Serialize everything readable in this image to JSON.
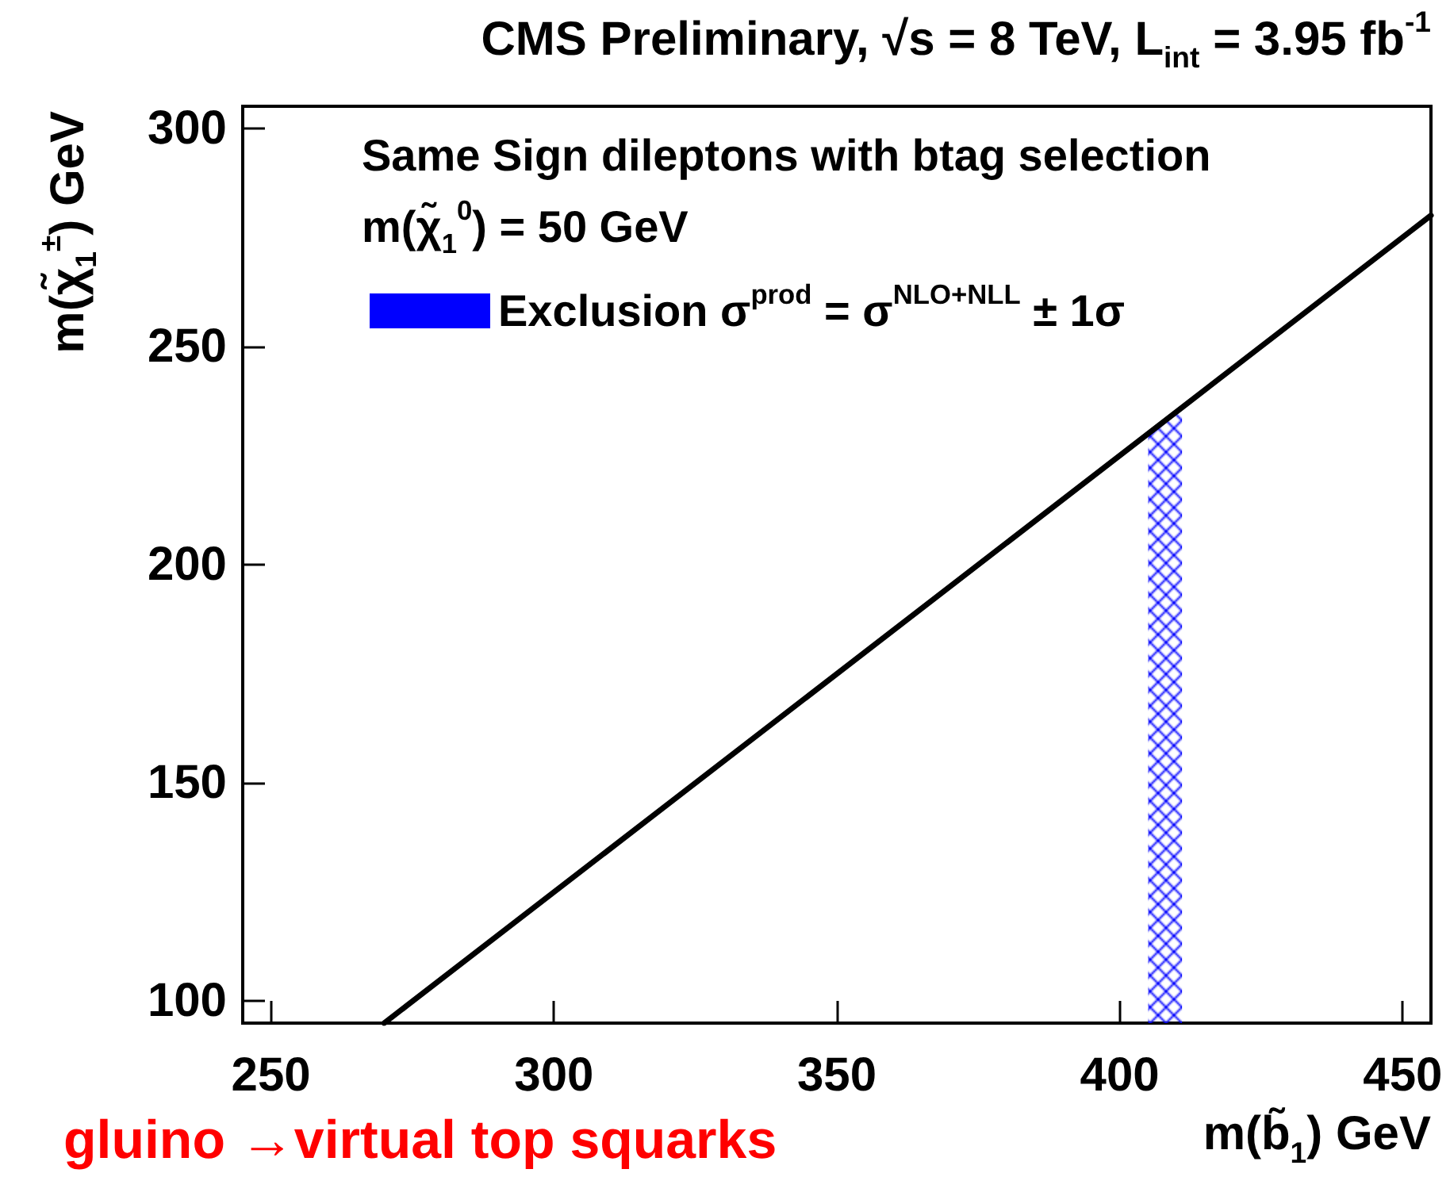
{
  "chart_data": {
    "type": "line",
    "title": "CMS Preliminary, √s = 8 TeV, L$_{int}$ = 3.95 fb$^{-1}$",
    "xlabel": "m(b̃$_{1}$) GeV",
    "ylabel": "m(χ̃$_{1}$$^{±}$) GeV",
    "legend_title": "Same Sign dileptons with btag selection",
    "annotations": [
      "m(χ̃$_{1}$$^{0}$) = 50 GeV",
      "gluino →virtual top squarks"
    ],
    "series": [
      {
        "color": "#000000",
        "x": [
          270,
          455
        ],
        "values": [
          95,
          280
        ]
      },
      {
        "type": "area",
        "name": "Exclusion σ$^{prod}$ = σ$^{NLO+NLL}$ ± 1σ",
        "color": "#0000ff",
        "x": [
          405,
          411
        ],
        "values": [
          230,
          236
        ]
      }
    ],
    "xlim": [
      245,
      455
    ],
    "xticks": [
      250,
      300,
      350,
      400,
      450
    ],
    "ylim": [
      95,
      305
    ],
    "yticks": [
      100,
      150,
      200,
      250,
      300
    ],
    "grid": false,
    "legend": "top left"
  }
}
